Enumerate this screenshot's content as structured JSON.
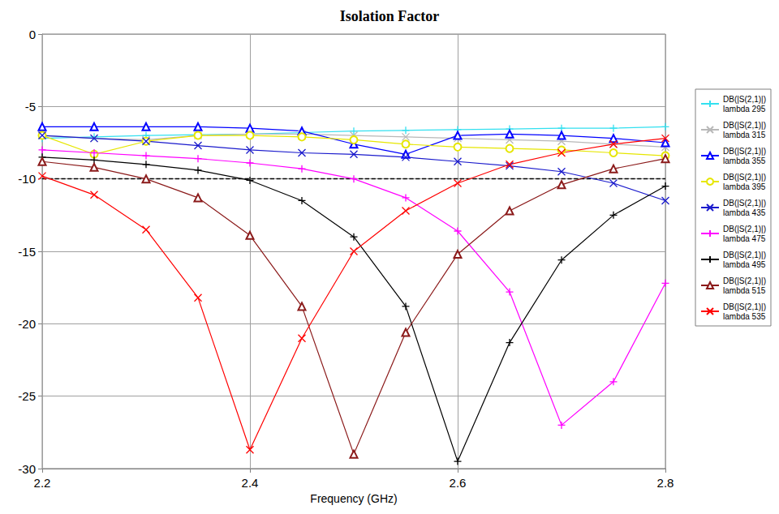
{
  "chart_data": {
    "type": "line",
    "title": "Isolation Factor",
    "x_label": "Frequency (GHz)",
    "x": [
      2.2,
      2.25,
      2.3,
      2.35,
      2.4,
      2.45,
      2.5,
      2.55,
      2.6,
      2.65,
      2.7,
      2.75,
      2.8
    ],
    "series": [
      {
        "name": "DB(|S(2,1)|) lambda 295",
        "color": "#33e0f0",
        "marker": "plus",
        "values": [
          -7.2,
          -7.1,
          -7.0,
          -6.95,
          -6.9,
          -6.8,
          -6.7,
          -6.65,
          -6.6,
          -6.55,
          -6.5,
          -6.5,
          -6.4
        ]
      },
      {
        "name": "DB(|S(2,1)|) lambda 315",
        "color": "#b8b8b8",
        "marker": "x",
        "values": [
          -7.0,
          -7.2,
          -7.3,
          -7.0,
          -6.9,
          -6.9,
          -7.0,
          -7.1,
          -7.2,
          -7.3,
          -7.4,
          -7.6,
          -7.8
        ]
      },
      {
        "name": "DB(|S(2,1)|) lambda 355",
        "color": "#0000ff",
        "marker": "triangle",
        "values": [
          -6.4,
          -6.4,
          -6.4,
          -6.4,
          -6.5,
          -6.7,
          -7.6,
          -8.3,
          -7.0,
          -6.9,
          -7.0,
          -7.2,
          -7.5
        ]
      },
      {
        "name": "DB(|S(2,1)|) lambda 395",
        "color": "#e6e600",
        "marker": "circle",
        "values": [
          -7.0,
          -8.3,
          -7.4,
          -7.0,
          -7.0,
          -7.1,
          -7.3,
          -7.6,
          -7.8,
          -7.9,
          -8.0,
          -8.2,
          -8.4
        ]
      },
      {
        "name": "DB(|S(2,1)|) lambda 435",
        "color": "#1a1acc",
        "marker": "x",
        "values": [
          -7.0,
          -7.2,
          -7.4,
          -7.7,
          -8.0,
          -8.2,
          -8.3,
          -8.5,
          -8.8,
          -9.1,
          -9.5,
          -10.3,
          -11.5
        ]
      },
      {
        "name": "DB(|S(2,1)|) lambda 475",
        "color": "#ff00ff",
        "marker": "plus",
        "values": [
          -8.0,
          -8.2,
          -8.4,
          -8.6,
          -8.9,
          -9.3,
          -10.0,
          -11.3,
          -13.6,
          -17.8,
          -27.0,
          -24.0,
          -17.2
        ]
      },
      {
        "name": "DB(|S(2,1)|) lambda 495",
        "color": "#000000",
        "marker": "plus",
        "values": [
          -8.5,
          -8.7,
          -9.0,
          -9.4,
          -10.1,
          -11.5,
          -14.0,
          -18.8,
          -29.5,
          -21.3,
          -15.6,
          -12.5,
          -10.5
        ]
      },
      {
        "name": "DB(|S(2,1)|) lambda 515",
        "color": "#8b1a1a",
        "marker": "triangle",
        "values": [
          -8.8,
          -9.2,
          -10.0,
          -11.3,
          -13.9,
          -18.8,
          -29.0,
          -20.6,
          -15.2,
          -12.2,
          -10.4,
          -9.3,
          -8.6
        ]
      },
      {
        "name": "DB(|S(2,1)|) lambda 535",
        "color": "#ff0000",
        "marker": "x",
        "values": [
          -9.8,
          -11.1,
          -13.5,
          -18.2,
          -28.7,
          -21.0,
          -15.0,
          -12.2,
          -10.3,
          -9.0,
          -8.2,
          -7.6,
          -7.2
        ]
      }
    ],
    "reference_line": {
      "y": -10,
      "line_style": "dashed",
      "color": "#000000"
    },
    "xlim": [
      2.2,
      2.8
    ],
    "xticks": [
      2.2,
      2.4,
      2.6,
      2.8
    ],
    "ylim": [
      -30,
      0
    ],
    "yticks": [
      -30,
      -25,
      -20,
      -15,
      -10,
      -5,
      0
    ],
    "grid": true,
    "legend": "right"
  }
}
